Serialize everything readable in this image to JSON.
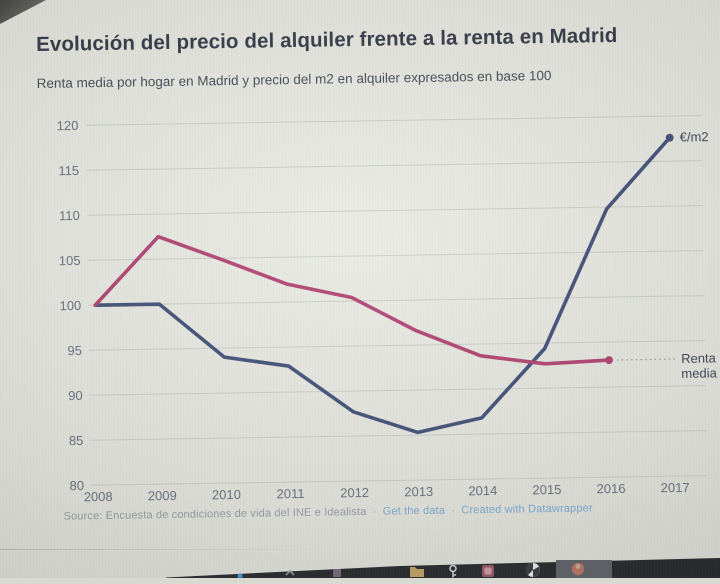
{
  "title": "Evolución del precio del alquiler frente a la renta en Madrid",
  "subtitle": "Renta media por hogar en Madrid y precio del m2 en alquiler expresados en base 100",
  "source": {
    "prefix": "Source: Encuesta de condiciones de vida del INE e Idealista",
    "separator": "·",
    "get_data_link": "Get the data",
    "credit_link": "Created with Datawrapper"
  },
  "chart_data": {
    "type": "line",
    "x": [
      2008,
      2009,
      2010,
      2011,
      2012,
      2013,
      2014,
      2015,
      2016,
      2017
    ],
    "series": [
      {
        "name": "€/m2",
        "color": "#31406b",
        "values": [
          100,
          100,
          94,
          92.9,
          87.7,
          85.3,
          86.8,
          94.4,
          109.8,
          117.6
        ],
        "label_lines": [
          "€/m2"
        ]
      },
      {
        "name": "Renta media",
        "color": "#a93264",
        "values": [
          100,
          107.5,
          104.8,
          102,
          100.4,
          96.6,
          93.7,
          92.7,
          93,
          null
        ],
        "label_lines": [
          "Renta",
          "media"
        ]
      }
    ],
    "ylim": [
      80,
      120
    ],
    "yticks": [
      80,
      85,
      90,
      95,
      100,
      105,
      110,
      115,
      120
    ],
    "grid": true,
    "legend_position": "line-end-labels",
    "xlabel": "",
    "ylabel": ""
  },
  "colors": {
    "accent_blue": "#31406b",
    "accent_magenta": "#a93264",
    "link_blue": "#6fa3cc",
    "axis_text": "#5d6372",
    "grid_line": "#c5cac4",
    "title_text": "#232938",
    "leader_dots": "#8e9294"
  },
  "taskbar": {
    "icons": [
      "app-dot-icon",
      "arrow-up-icon",
      "tile-icon",
      "folder-icon",
      "key-icon",
      "photos-icon",
      "browser-icon",
      "avatar-icon"
    ]
  }
}
